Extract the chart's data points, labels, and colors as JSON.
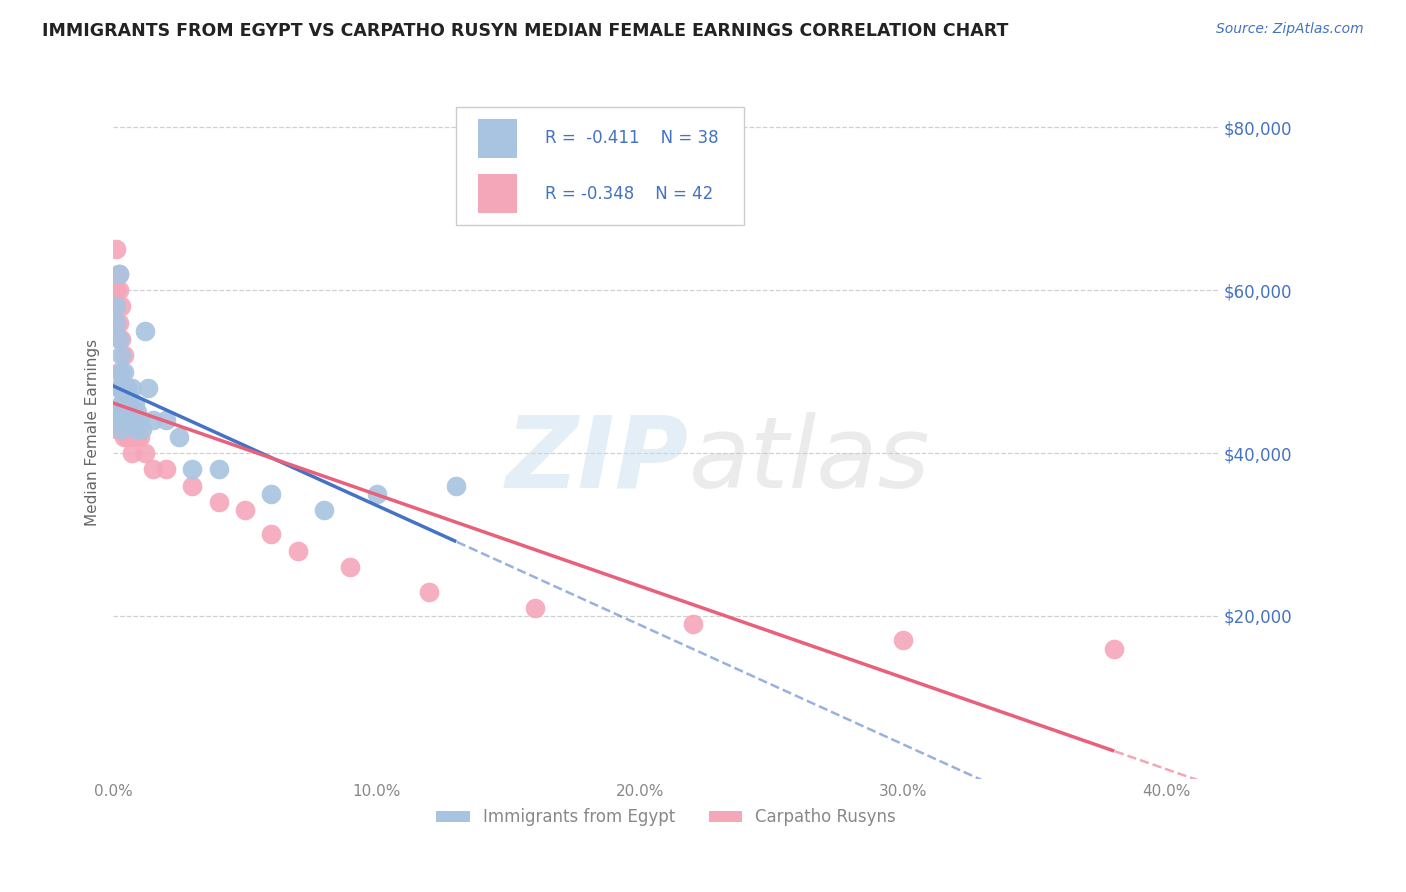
{
  "title": "IMMIGRANTS FROM EGYPT VS CARPATHO RUSYN MEDIAN FEMALE EARNINGS CORRELATION CHART",
  "source_text": "Source: ZipAtlas.com",
  "ylabel": "Median Female Earnings",
  "legend_r1": "R =  -0.411",
  "legend_n1": "N = 38",
  "legend_r2": "R = -0.348",
  "legend_n2": "N = 42",
  "legend_label1": "Immigrants from Egypt",
  "legend_label2": "Carpatho Rusyns",
  "ytick_labels": [
    "$80,000",
    "$60,000",
    "$40,000",
    "$20,000"
  ],
  "ytick_values": [
    80000,
    60000,
    40000,
    20000
  ],
  "color_egypt": "#a8c4e0",
  "color_rusyn": "#f4a7b9",
  "color_line_egypt": "#4472c4",
  "color_line_rusyn": "#e8607a",
  "color_title": "#222222",
  "color_source": "#4472c4",
  "color_yticks": "#4472c4",
  "color_xticks": "#888888",
  "color_legend_text": "#4472c4",
  "egypt_x": [
    0.001,
    0.001,
    0.001,
    0.002,
    0.002,
    0.002,
    0.002,
    0.003,
    0.003,
    0.003,
    0.003,
    0.003,
    0.004,
    0.004,
    0.004,
    0.005,
    0.005,
    0.005,
    0.006,
    0.006,
    0.007,
    0.007,
    0.008,
    0.008,
    0.009,
    0.01,
    0.011,
    0.012,
    0.013,
    0.015,
    0.02,
    0.025,
    0.03,
    0.04,
    0.06,
    0.08,
    0.1,
    0.13
  ],
  "egypt_y": [
    44000,
    58000,
    56000,
    62000,
    54000,
    48000,
    45000,
    52000,
    50000,
    48000,
    46000,
    43000,
    50000,
    47000,
    44000,
    48000,
    46000,
    44000,
    47000,
    44000,
    48000,
    44000,
    46000,
    43000,
    45000,
    44000,
    43000,
    55000,
    48000,
    44000,
    44000,
    42000,
    38000,
    38000,
    35000,
    33000,
    35000,
    36000
  ],
  "rusyn_x": [
    0.001,
    0.001,
    0.001,
    0.002,
    0.002,
    0.002,
    0.002,
    0.002,
    0.003,
    0.003,
    0.003,
    0.003,
    0.003,
    0.004,
    0.004,
    0.004,
    0.004,
    0.005,
    0.005,
    0.005,
    0.005,
    0.006,
    0.006,
    0.007,
    0.007,
    0.008,
    0.009,
    0.01,
    0.012,
    0.015,
    0.02,
    0.03,
    0.04,
    0.05,
    0.06,
    0.07,
    0.09,
    0.12,
    0.16,
    0.22,
    0.3,
    0.38
  ],
  "rusyn_y": [
    65000,
    60000,
    43000,
    62000,
    60000,
    56000,
    50000,
    44000,
    58000,
    54000,
    48000,
    44000,
    43000,
    52000,
    46000,
    44000,
    42000,
    48000,
    45000,
    43000,
    42000,
    46000,
    42000,
    44000,
    40000,
    44000,
    42000,
    42000,
    40000,
    38000,
    38000,
    36000,
    34000,
    33000,
    30000,
    28000,
    26000,
    23000,
    21000,
    19000,
    17000,
    16000
  ],
  "xlim": [
    0.0,
    0.42
  ],
  "ylim": [
    0,
    85000
  ],
  "background_color": "#ffffff",
  "grid_color": "#d0d0d0"
}
